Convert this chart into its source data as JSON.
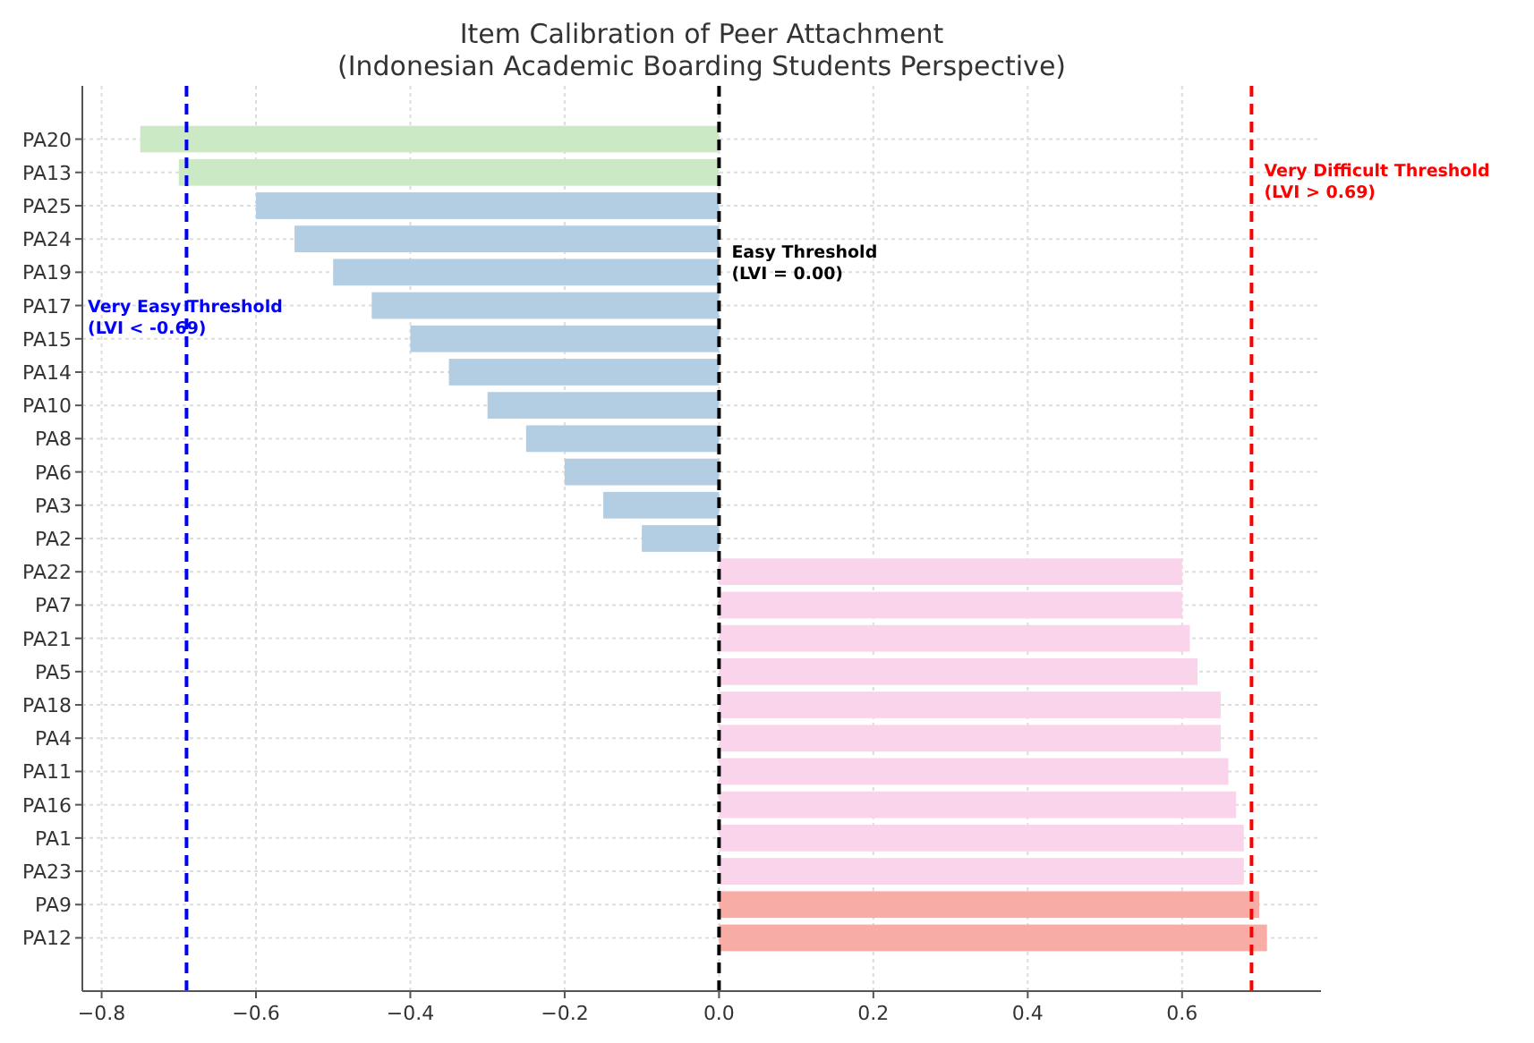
{
  "chart_data": {
    "type": "bar",
    "orientation": "horizontal",
    "title": "Item Calibration of Peer Attachment\n(Indonesian Academic Boarding Students Perspective)",
    "categories": [
      "PA20",
      "PA13",
      "PA25",
      "PA24",
      "PA19",
      "PA17",
      "PA15",
      "PA14",
      "PA10",
      "PA8",
      "PA6",
      "PA3",
      "PA2",
      "PA22",
      "PA7",
      "PA21",
      "PA5",
      "PA18",
      "PA4",
      "PA11",
      "PA16",
      "PA1",
      "PA23",
      "PA9",
      "PA12"
    ],
    "values": [
      -0.75,
      -0.7,
      -0.6,
      -0.55,
      -0.5,
      -0.45,
      -0.4,
      -0.35,
      -0.3,
      -0.25,
      -0.2,
      -0.15,
      -0.1,
      0.6,
      0.6,
      0.61,
      0.62,
      0.65,
      0.65,
      0.66,
      0.67,
      0.68,
      0.68,
      0.7,
      0.71
    ],
    "colors": [
      "#cce9c5",
      "#cce9c5",
      "#b3cde3",
      "#b3cde3",
      "#b3cde3",
      "#b3cde3",
      "#b3cde3",
      "#b3cde3",
      "#b3cde3",
      "#b3cde3",
      "#b3cde3",
      "#b3cde3",
      "#b3cde3",
      "#fad4ea",
      "#fad4ea",
      "#fad4ea",
      "#fad4ea",
      "#fad4ea",
      "#fad4ea",
      "#fad4ea",
      "#fad4ea",
      "#fad4ea",
      "#fad4ea",
      "#f7aca6",
      "#f7aca6"
    ],
    "xlim": [
      -0.825,
      0.78
    ],
    "xticks": [
      {
        "value": -0.8,
        "label": "−0.8"
      },
      {
        "value": -0.6,
        "label": "−0.6"
      },
      {
        "value": -0.4,
        "label": "−0.4"
      },
      {
        "value": -0.2,
        "label": "−0.2"
      },
      {
        "value": 0,
        "label": "0.0"
      },
      {
        "value": 0.2,
        "label": "0.2"
      },
      {
        "value": 0.4,
        "label": "0.4"
      },
      {
        "value": 0.6,
        "label": "0.6"
      }
    ],
    "grid": true,
    "ref_lines": [
      {
        "axis": "x",
        "value": -0.69,
        "label": "Very Easy Threshold\n(LVI < -0.69)",
        "color": "#0000ff",
        "line_style": "dashed"
      },
      {
        "axis": "x",
        "value": 0,
        "label": "Easy Threshold\n(LVI = 0.00)",
        "color": "#000000",
        "line_style": "dashed"
      },
      {
        "axis": "x",
        "value": 0.69,
        "label": "Very Difficult Threshold\n(LVI > 0.69)",
        "color": "#ff0000",
        "line_style": "dashed"
      }
    ]
  }
}
